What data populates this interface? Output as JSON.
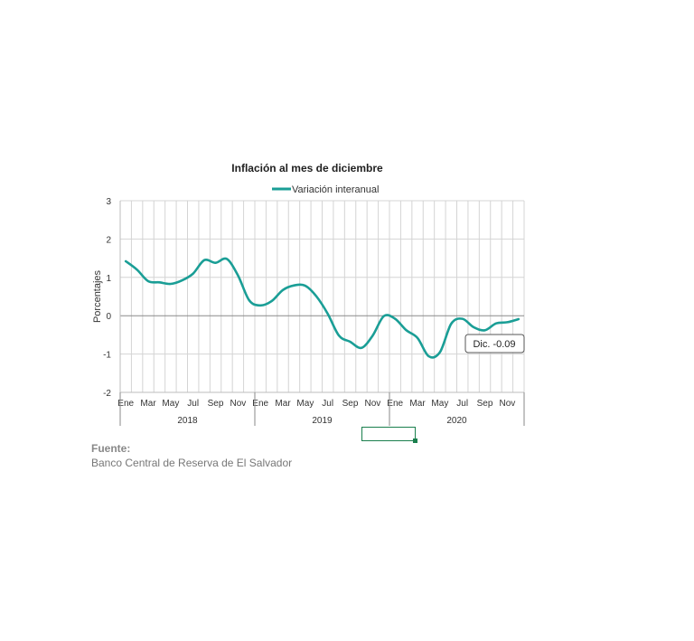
{
  "chart_data": {
    "type": "line",
    "title": "Inflación al mes de diciembre",
    "ylabel": "Porcentajes",
    "ylim": [
      -2,
      3
    ],
    "yticks": [
      "3",
      "2",
      "1",
      "0",
      "-1",
      "-2"
    ],
    "x": [
      "2018-01",
      "2018-02",
      "2018-03",
      "2018-04",
      "2018-05",
      "2018-06",
      "2018-07",
      "2018-08",
      "2018-09",
      "2018-10",
      "2018-11",
      "2018-12",
      "2019-01",
      "2019-02",
      "2019-03",
      "2019-04",
      "2019-05",
      "2019-06",
      "2019-07",
      "2019-08",
      "2019-09",
      "2019-10",
      "2019-11",
      "2019-12",
      "2020-01",
      "2020-02",
      "2020-03",
      "2020-04",
      "2020-05",
      "2020-06",
      "2020-07",
      "2020-08",
      "2020-09",
      "2020-10",
      "2020-11",
      "2020-12"
    ],
    "x_tick_labels": [
      "Ene",
      "",
      "Mar",
      "",
      "May",
      "",
      "Jul",
      "",
      "Sep",
      "",
      "Nov",
      "",
      "Ene",
      "",
      "Mar",
      "",
      "May",
      "",
      "Jul",
      "",
      "Sep",
      "",
      "Nov",
      "",
      "Ene",
      "",
      "Mar",
      "",
      "May",
      "",
      "Jul",
      "",
      "Sep",
      "",
      "Nov",
      ""
    ],
    "year_groups": [
      "2018",
      "2019",
      "2020"
    ],
    "series": [
      {
        "name": "Variación interanual",
        "color": "#1a9e96",
        "values": [
          1.42,
          1.2,
          0.9,
          0.87,
          0.83,
          0.92,
          1.1,
          1.45,
          1.38,
          1.48,
          1.05,
          0.4,
          0.27,
          0.38,
          0.67,
          0.79,
          0.78,
          0.5,
          0.05,
          -0.52,
          -0.68,
          -0.84,
          -0.52,
          -0.01,
          -0.08,
          -0.38,
          -0.58,
          -1.06,
          -0.95,
          -0.21,
          -0.08,
          -0.3,
          -0.38,
          -0.2,
          -0.17,
          -0.09
        ]
      }
    ],
    "annotation": "Dic. -0.09",
    "grid": true,
    "legend_position": "top"
  },
  "source": {
    "label": "Fuente:",
    "text": "Banco Central de Reserva de El Salvador"
  }
}
